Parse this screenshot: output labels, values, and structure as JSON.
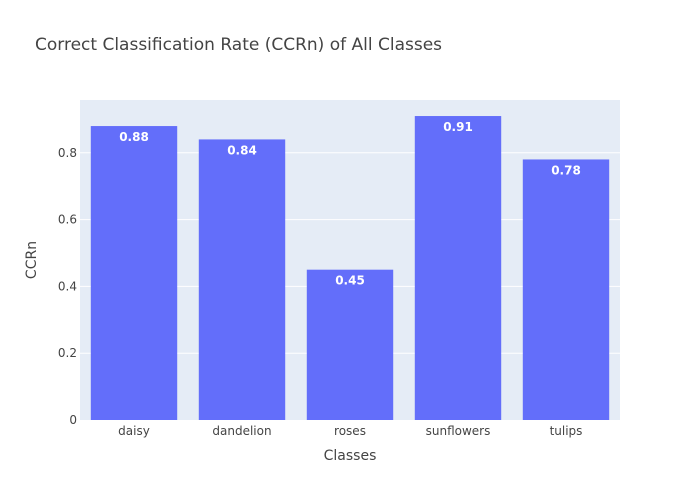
{
  "chart_data": {
    "type": "bar",
    "title": "Correct Classification Rate (CCRn) of All Classes",
    "xlabel": "Classes",
    "ylabel": "CCRn",
    "categories": [
      "daisy",
      "dandelion",
      "roses",
      "sunflowers",
      "tulips"
    ],
    "values": [
      0.88,
      0.84,
      0.45,
      0.91,
      0.78
    ],
    "data_labels": [
      "0.88",
      "0.84",
      "0.45",
      "0.91",
      "0.78"
    ],
    "ylim": [
      0,
      0.958
    ],
    "y_ticks": [
      0,
      0.2,
      0.4,
      0.6,
      0.8
    ],
    "y_tick_labels": [
      "0",
      "0.2",
      "0.4",
      "0.6",
      "0.8"
    ],
    "grid": true,
    "legend": "none",
    "colors": {
      "bar": "#636efa",
      "plot_background": "#e5ecf6",
      "grid": "#ffffff",
      "text": "#444444",
      "label_text": "#ffffff"
    }
  }
}
